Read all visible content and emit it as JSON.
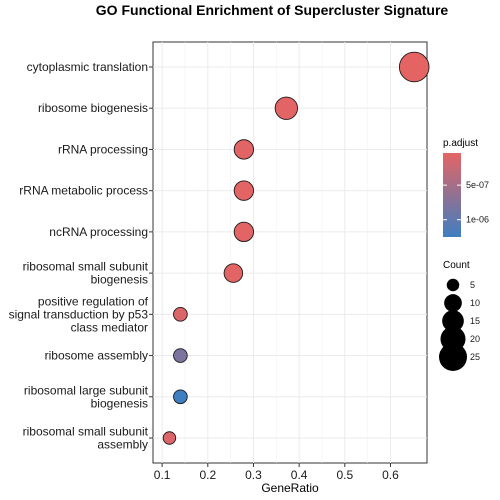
{
  "chart_data": {
    "type": "scatter",
    "title": "GO Functional Enrichment of Supercluster Signature",
    "xlabel": "GeneRatio",
    "xlim": [
      0.08,
      0.68
    ],
    "xticks": [
      0.1,
      0.2,
      0.3,
      0.4,
      0.5,
      0.6
    ],
    "xtick_labels": [
      "0.1",
      "0.2",
      "0.3",
      "0.4",
      "0.5",
      "0.6"
    ],
    "grid": true,
    "terms": [
      {
        "label": [
          "cytoplasmic translation"
        ],
        "gene_ratio": 0.652,
        "count": 28,
        "p_adjust": 3.5e-08
      },
      {
        "label": [
          "ribosome biogenesis"
        ],
        "gene_ratio": 0.372,
        "count": 16,
        "p_adjust": 4e-08
      },
      {
        "label": [
          "rRNA processing"
        ],
        "gene_ratio": 0.279,
        "count": 12,
        "p_adjust": 4e-08
      },
      {
        "label": [
          "rRNA metabolic process"
        ],
        "gene_ratio": 0.279,
        "count": 12,
        "p_adjust": 4e-08
      },
      {
        "label": [
          "ncRNA processing"
        ],
        "gene_ratio": 0.279,
        "count": 12,
        "p_adjust": 4e-08
      },
      {
        "label": [
          "ribosomal small subunit",
          "biogenesis"
        ],
        "gene_ratio": 0.256,
        "count": 11,
        "p_adjust": 4e-08
      },
      {
        "label": [
          "positive regulation of",
          "signal transduction by p53",
          "class mediator"
        ],
        "gene_ratio": 0.14,
        "count": 6,
        "p_adjust": 1e-07
      },
      {
        "label": [
          "ribosome assembly"
        ],
        "gene_ratio": 0.14,
        "count": 6,
        "p_adjust": 8e-07
      },
      {
        "label": [
          "ribosomal large subunit",
          "biogenesis"
        ],
        "gene_ratio": 0.14,
        "count": 6,
        "p_adjust": 1.25e-06
      },
      {
        "label": [
          "ribosomal small subunit",
          "assembly"
        ],
        "gene_ratio": 0.116,
        "count": 5,
        "p_adjust": 1e-07
      }
    ],
    "color_legend": {
      "title": "p.adjust",
      "labels": [
        "5e-07",
        "1e-06"
      ],
      "values": [
        5e-07,
        1e-06
      ],
      "range": [
        3.5e-08,
        1.25e-06
      ],
      "low_color": "#e46464",
      "high_color": "#3f7ec0"
    },
    "size_legend": {
      "title": "Count",
      "labels": [
        "5",
        "10",
        "15",
        "20",
        "25"
      ],
      "values": [
        5,
        10,
        15,
        20,
        25
      ]
    }
  }
}
